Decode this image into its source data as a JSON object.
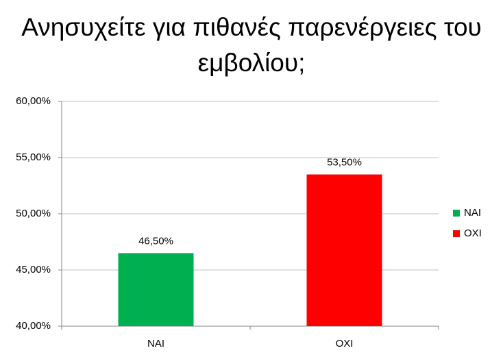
{
  "chart_data": {
    "type": "bar",
    "title": "Ανησυχείτε για πιθανές παρενέργειες του εμβολίου;",
    "categories": [
      "NAI",
      "OXI"
    ],
    "series": [
      {
        "name": "NAI",
        "color": "#00b050",
        "values": [
          46.5,
          null
        ],
        "value_labels": [
          "46,50%",
          null
        ]
      },
      {
        "name": "OXI",
        "color": "#ff0000",
        "values": [
          null,
          53.5
        ],
        "value_labels": [
          null,
          "53,50%"
        ]
      }
    ],
    "ylim": [
      40,
      60
    ],
    "yticks": [
      {
        "value": 40,
        "label": "40,00%"
      },
      {
        "value": 45,
        "label": "45,00%"
      },
      {
        "value": 50,
        "label": "50,00%"
      },
      {
        "value": 55,
        "label": "55,00%"
      },
      {
        "value": 60,
        "label": "60,00%"
      }
    ],
    "grid": true,
    "legend": "right"
  }
}
